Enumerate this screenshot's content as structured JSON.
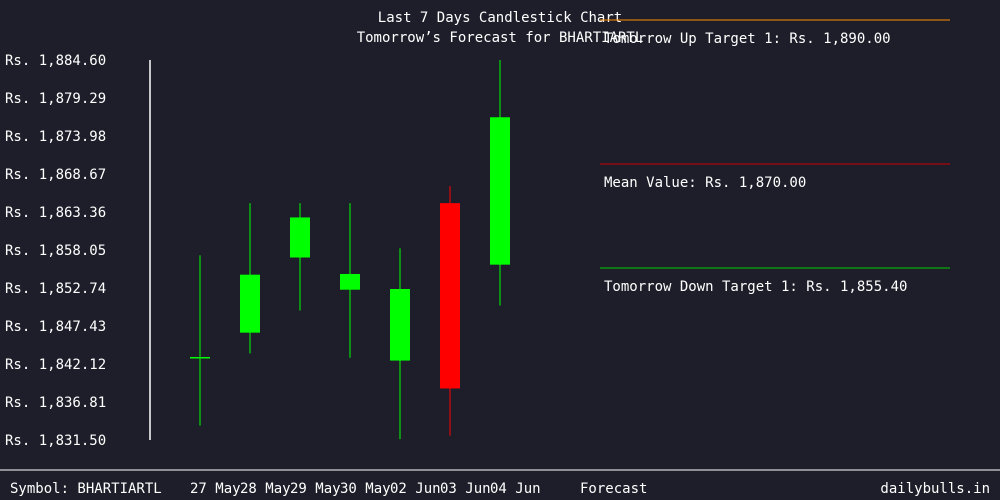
{
  "header": {
    "title": "Last 7 Days Candlestick Chart",
    "subtitle": "Tomorrow’s Forecast for BHARTIARTL"
  },
  "footer": {
    "symbol": "Symbol: BHARTIARTL",
    "forecast_label": "Forecast",
    "site": "dailybulls.in"
  },
  "colors": {
    "background": "#1e1e2a",
    "bullish": "#00ff00",
    "bearish": "#ff0000",
    "up_target": "#ff8c00",
    "mean": "#cc0000",
    "down_target": "#00cc00",
    "axis": "#ffffff"
  },
  "chart_data": {
    "type": "candlestick",
    "ylim": [
      1831.5,
      1884.6
    ],
    "y_ticks": [
      "Rs. 1,884.60",
      "Rs. 1,879.29",
      "Rs. 1,873.98",
      "Rs. 1,868.67",
      "Rs. 1,863.36",
      "Rs. 1,858.05",
      "Rs. 1,852.74",
      "Rs. 1,847.43",
      "Rs. 1,842.12",
      "Rs. 1,836.81",
      "Rs. 1,831.50"
    ],
    "candles": [
      {
        "date": "",
        "open": 1843.0,
        "high": 1857.3,
        "low": 1833.5,
        "close": 1843.0
      },
      {
        "date": "27 May",
        "open": 1846.5,
        "high": 1864.6,
        "low": 1843.6,
        "close": 1854.6
      },
      {
        "date": "28 May",
        "open": 1857.0,
        "high": 1864.6,
        "low": 1849.6,
        "close": 1862.6
      },
      {
        "date": "29 May",
        "open": 1852.5,
        "high": 1864.6,
        "low": 1843.0,
        "close": 1854.7
      },
      {
        "date": "30 May",
        "open": 1842.6,
        "high": 1858.3,
        "low": 1831.6,
        "close": 1852.6
      },
      {
        "date": "02 Jun",
        "open": 1864.6,
        "high": 1867.0,
        "low": 1832.1,
        "close": 1838.7
      },
      {
        "date": "03 Jun",
        "open": 1856.0,
        "high": 1884.6,
        "low": 1850.3,
        "close": 1876.6
      },
      {
        "date": "04 Jun"
      }
    ],
    "forecast": [
      {
        "label": "Tomorrow Up Target 1: Rs. 1,890.00",
        "value": 1890.0,
        "color": "#ff8c00"
      },
      {
        "label": "Mean Value: Rs. 1,870.00",
        "value": 1870.0,
        "color": "#cc0000"
      },
      {
        "label": "Tomorrow Down Target 1: Rs. 1,855.40",
        "value": 1855.4,
        "color": "#00cc00"
      }
    ]
  }
}
